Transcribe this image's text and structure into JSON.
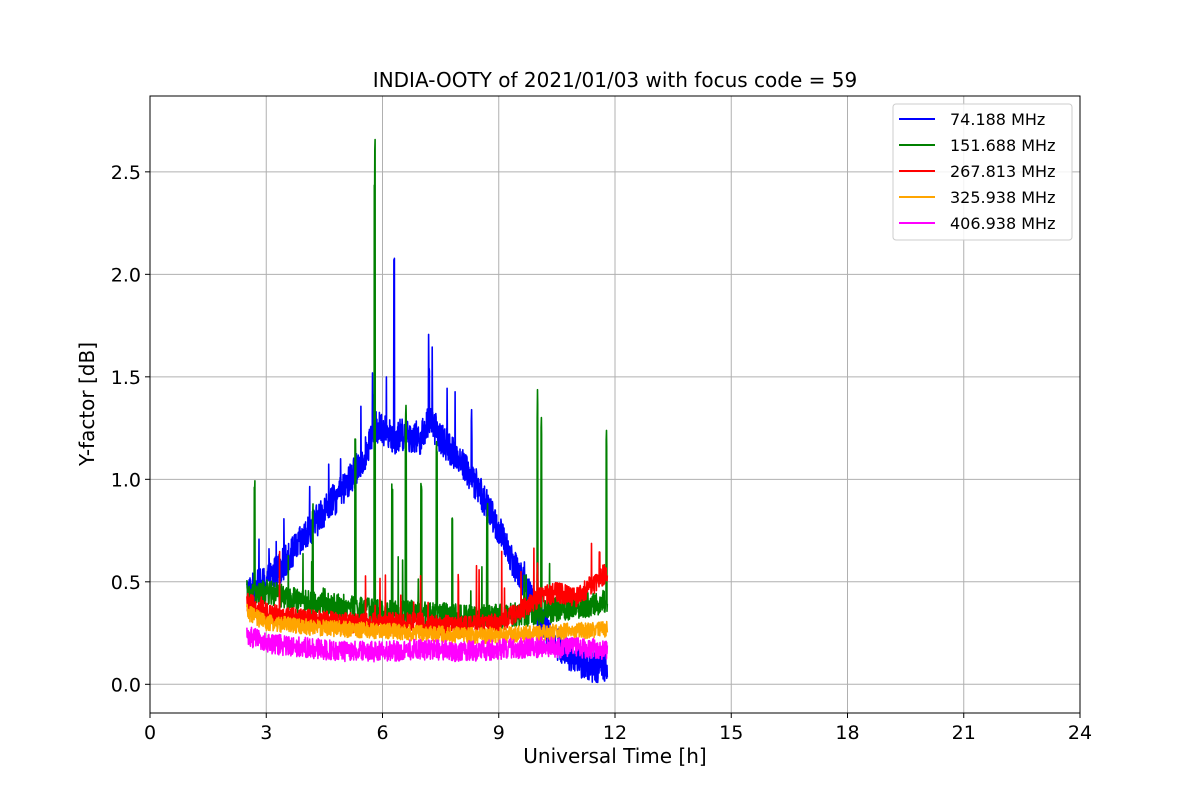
{
  "chart_data": {
    "type": "line",
    "title": "INDIA-OOTY of 2021/01/03 with focus code = 59",
    "xlabel": "Universal Time [h]",
    "ylabel": "Y-factor [dB]",
    "xlim": [
      0,
      24
    ],
    "ylim": [
      -0.14,
      2.87
    ],
    "xticks": [
      0,
      3,
      6,
      9,
      12,
      15,
      18,
      21,
      24
    ],
    "xtick_labels": [
      "0",
      "3",
      "6",
      "9",
      "12",
      "15",
      "18",
      "21",
      "24"
    ],
    "yticks": [
      0.0,
      0.5,
      1.0,
      1.5,
      2.0,
      2.5
    ],
    "ytick_labels": [
      "0.0",
      "0.5",
      "1.0",
      "1.5",
      "2.0",
      "2.5"
    ],
    "grid": true,
    "legend_position": "top-right",
    "series": [
      {
        "name": "74.188 MHz",
        "label": " 74.188 MHz",
        "color": "#0000ff",
        "x": [
          2.5,
          3.0,
          3.5,
          4.0,
          4.5,
          5.0,
          5.5,
          5.8,
          6.0,
          6.3,
          6.5,
          7.0,
          7.2,
          7.5,
          8.0,
          8.5,
          9.0,
          9.5,
          10.0,
          10.5,
          11.0,
          11.5,
          11.8
        ],
        "values": [
          0.45,
          0.5,
          0.6,
          0.72,
          0.85,
          0.95,
          1.1,
          1.25,
          1.25,
          1.2,
          1.22,
          1.2,
          1.3,
          1.2,
          1.1,
          0.95,
          0.75,
          0.55,
          0.35,
          0.2,
          0.12,
          0.08,
          0.1
        ],
        "noise": 0.08,
        "spikes": [
          [
            5.75,
            1.52
          ],
          [
            6.3,
            2.2
          ],
          [
            7.2,
            1.75
          ],
          [
            8.3,
            1.35
          ]
        ]
      },
      {
        "name": "151.688 MHz",
        "label": "151.688 MHz",
        "color": "#008000",
        "x": [
          2.5,
          3.0,
          4.0,
          5.0,
          6.0,
          7.0,
          8.0,
          9.0,
          10.0,
          11.0,
          11.8
        ],
        "values": [
          0.42,
          0.45,
          0.4,
          0.38,
          0.35,
          0.35,
          0.33,
          0.33,
          0.35,
          0.38,
          0.4
        ],
        "noise": 0.06,
        "spikes": [
          [
            2.7,
            1.07
          ],
          [
            4.2,
            0.95
          ],
          [
            5.3,
            1.2
          ],
          [
            5.8,
            2.73
          ],
          [
            6.25,
            0.98
          ],
          [
            6.6,
            1.4
          ],
          [
            7.0,
            1.0
          ],
          [
            7.4,
            1.25
          ],
          [
            7.8,
            0.9
          ],
          [
            8.7,
            0.9
          ],
          [
            10.0,
            1.44
          ],
          [
            10.1,
            1.38
          ],
          [
            11.78,
            1.26
          ]
        ]
      },
      {
        "name": "267.813 MHz",
        "label": "267.813 MHz",
        "color": "#ff0000",
        "x": [
          2.5,
          3.0,
          4.0,
          5.0,
          6.0,
          7.0,
          8.0,
          9.0,
          9.5,
          10.0,
          10.5,
          11.0,
          11.5,
          11.8
        ],
        "values": [
          0.4,
          0.35,
          0.32,
          0.3,
          0.3,
          0.3,
          0.28,
          0.3,
          0.35,
          0.42,
          0.45,
          0.42,
          0.5,
          0.55
        ],
        "noise": 0.05,
        "spikes": [
          [
            11.6,
            0.72
          ],
          [
            10.0,
            0.6
          ]
        ]
      },
      {
        "name": "325.938 MHz",
        "label": "325.938 MHz",
        "color": "#ffa500",
        "x": [
          2.5,
          3.0,
          4.0,
          5.0,
          6.0,
          7.0,
          8.0,
          9.0,
          10.0,
          11.0,
          11.8
        ],
        "values": [
          0.35,
          0.3,
          0.28,
          0.27,
          0.26,
          0.25,
          0.24,
          0.24,
          0.25,
          0.26,
          0.27
        ],
        "noise": 0.04,
        "spikes": []
      },
      {
        "name": "406.938 MHz",
        "label": "406.938 MHz",
        "color": "#ff00ff",
        "x": [
          2.5,
          3.0,
          4.0,
          5.0,
          6.0,
          7.0,
          8.0,
          9.0,
          10.0,
          11.0,
          11.8
        ],
        "values": [
          0.24,
          0.2,
          0.18,
          0.16,
          0.16,
          0.17,
          0.16,
          0.17,
          0.18,
          0.18,
          0.17
        ],
        "noise": 0.05,
        "spikes": []
      }
    ]
  }
}
